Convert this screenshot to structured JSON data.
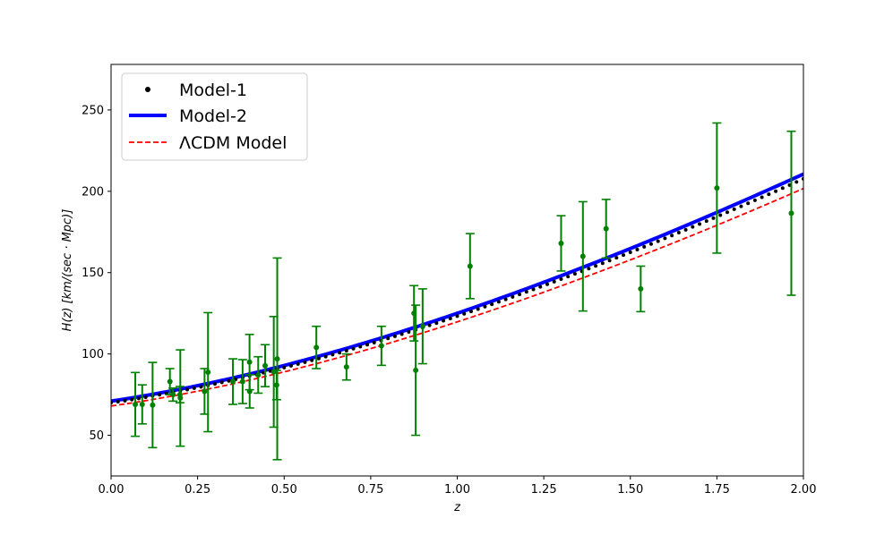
{
  "chart_data": {
    "type": "scatter",
    "title": "",
    "xlabel": "z",
    "ylabel": "H(z)  [km/(sec · Mpc)]",
    "xlim": [
      0,
      2.0
    ],
    "ylim": [
      25,
      278
    ],
    "xticks": [
      "0.00",
      "0.25",
      "0.50",
      "0.75",
      "1.00",
      "1.25",
      "1.50",
      "1.75",
      "2.00"
    ],
    "yticks": [
      "50",
      "100",
      "150",
      "200",
      "250"
    ],
    "grid": false,
    "legend_position": "top-left",
    "legend": [
      {
        "label": "Model-1",
        "style": "dots",
        "color": "#000000"
      },
      {
        "label": "Model-2",
        "style": "solid",
        "color": "#0000ff"
      },
      {
        "label": "ΛCDM Model",
        "style": "dashed",
        "color": "#ff0000"
      }
    ],
    "models": {
      "model1": {
        "H0": 70.0,
        "Om": 0.3,
        "color": "#000000"
      },
      "model2": {
        "H0": 71.0,
        "Om": 0.3,
        "color": "#0000ff"
      },
      "lcdm": {
        "H0": 68.0,
        "Om": 0.3,
        "color": "#ff0000"
      }
    },
    "observations": {
      "color": "#008000",
      "points": [
        {
          "z": 0.07,
          "H": 69.0,
          "err": 19.6
        },
        {
          "z": 0.09,
          "H": 69.0,
          "err": 12.0
        },
        {
          "z": 0.12,
          "H": 68.6,
          "err": 26.2
        },
        {
          "z": 0.17,
          "H": 83.0,
          "err": 8.0
        },
        {
          "z": 0.179,
          "H": 75.0,
          "err": 4.0
        },
        {
          "z": 0.199,
          "H": 75.0,
          "err": 5.0
        },
        {
          "z": 0.2,
          "H": 72.9,
          "err": 29.6
        },
        {
          "z": 0.27,
          "H": 77.0,
          "err": 14.0
        },
        {
          "z": 0.28,
          "H": 88.8,
          "err": 36.6
        },
        {
          "z": 0.352,
          "H": 83.0,
          "err": 14.0
        },
        {
          "z": 0.38,
          "H": 83.0,
          "err": 13.5
        },
        {
          "z": 0.4,
          "H": 95.0,
          "err": 17.0
        },
        {
          "z": 0.4004,
          "H": 77.0,
          "err": 10.2
        },
        {
          "z": 0.425,
          "H": 87.1,
          "err": 11.2
        },
        {
          "z": 0.445,
          "H": 92.8,
          "err": 12.9
        },
        {
          "z": 0.47,
          "H": 89.0,
          "err": 34.0
        },
        {
          "z": 0.4783,
          "H": 80.9,
          "err": 9.0
        },
        {
          "z": 0.48,
          "H": 97.0,
          "err": 62.0
        },
        {
          "z": 0.593,
          "H": 104.0,
          "err": 13.0
        },
        {
          "z": 0.68,
          "H": 92.0,
          "err": 8.0
        },
        {
          "z": 0.781,
          "H": 105.0,
          "err": 12.0
        },
        {
          "z": 0.875,
          "H": 125.0,
          "err": 17.0
        },
        {
          "z": 0.88,
          "H": 90.0,
          "err": 40.0
        },
        {
          "z": 0.9,
          "H": 117.0,
          "err": 23.0
        },
        {
          "z": 1.037,
          "H": 154.0,
          "err": 20.0
        },
        {
          "z": 1.3,
          "H": 168.0,
          "err": 17.0
        },
        {
          "z": 1.363,
          "H": 160.0,
          "err": 33.6
        },
        {
          "z": 1.43,
          "H": 177.0,
          "err": 18.0
        },
        {
          "z": 1.53,
          "H": 140.0,
          "err": 14.0
        },
        {
          "z": 1.75,
          "H": 202.0,
          "err": 40.0
        },
        {
          "z": 1.965,
          "H": 186.5,
          "err": 50.4
        }
      ]
    }
  }
}
